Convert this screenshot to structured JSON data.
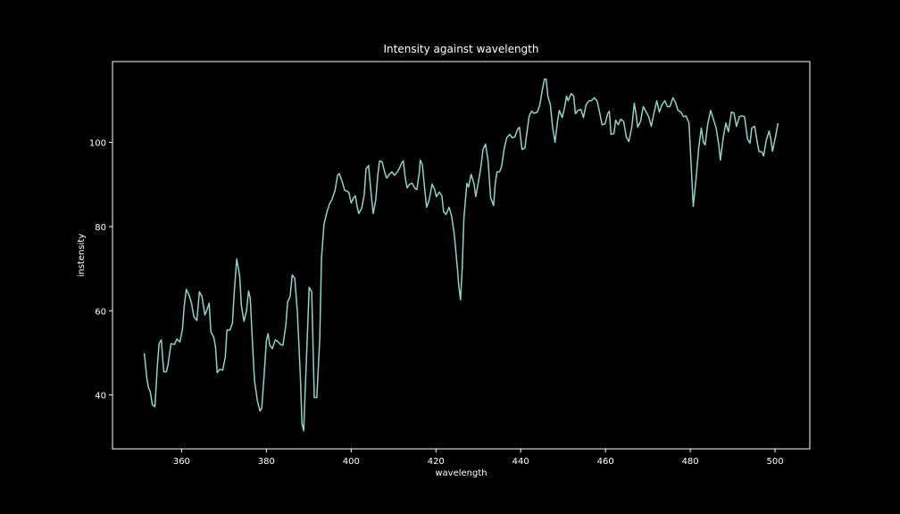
{
  "chart_data": {
    "type": "line",
    "title": "Intensity against wavelength",
    "x_label": "wavelength",
    "y_label": "instensity",
    "xlim": [
      343.7,
      508.2
    ],
    "ylim": [
      27.2,
      119.2
    ],
    "xticks": [
      360,
      380,
      400,
      420,
      440,
      460,
      480,
      500
    ],
    "yticks": [
      40,
      60,
      80,
      100
    ],
    "x": [
      351.2,
      351.8,
      352.2,
      352.6,
      353.1,
      353.7,
      354.3,
      354.7,
      355.2,
      355.8,
      356.4,
      356.8,
      357.5,
      358.3,
      358.9,
      359.6,
      360.2,
      360.6,
      361.1,
      361.7,
      362.3,
      362.9,
      363.6,
      364.2,
      364.8,
      365.5,
      365.9,
      366.5,
      366.9,
      367.6,
      368.0,
      368.4,
      369.0,
      369.7,
      370.3,
      370.7,
      371.4,
      372.0,
      372.4,
      373.0,
      373.7,
      374.1,
      374.7,
      375.3,
      375.8,
      376.2,
      376.8,
      377.2,
      377.9,
      378.5,
      378.9,
      379.5,
      380.0,
      380.4,
      380.8,
      381.4,
      382.1,
      382.7,
      383.3,
      383.9,
      384.6,
      385.0,
      385.6,
      386.1,
      386.7,
      387.3,
      388.0,
      388.4,
      388.8,
      389.4,
      390.1,
      390.7,
      391.3,
      391.9,
      392.6,
      393.0,
      393.6,
      394.3,
      394.9,
      395.5,
      396.2,
      396.8,
      397.2,
      397.8,
      398.5,
      399.1,
      399.5,
      400.0,
      400.6,
      401.0,
      401.4,
      401.8,
      402.5,
      403.1,
      403.5,
      404.1,
      404.8,
      405.2,
      405.8,
      406.3,
      406.7,
      407.3,
      408.0,
      408.4,
      409.0,
      409.6,
      410.2,
      410.9,
      411.5,
      411.9,
      412.3,
      412.8,
      413.2,
      413.8,
      414.4,
      415.1,
      415.5,
      416.1,
      416.3,
      416.8,
      417.4,
      417.8,
      418.4,
      419.1,
      419.7,
      420.1,
      420.8,
      421.4,
      421.8,
      422.4,
      423.1,
      423.7,
      424.3,
      425.0,
      425.4,
      425.8,
      426.2,
      426.6,
      427.3,
      427.7,
      428.3,
      429.0,
      429.4,
      430.0,
      430.6,
      431.1,
      431.7,
      432.3,
      432.9,
      433.6,
      434.0,
      434.4,
      435.0,
      435.5,
      436.1,
      436.7,
      437.4,
      438.0,
      438.6,
      439.3,
      439.7,
      440.3,
      441.0,
      441.4,
      442.0,
      442.6,
      443.2,
      443.9,
      444.5,
      445.1,
      445.6,
      446.0,
      446.4,
      447.0,
      447.5,
      448.1,
      448.7,
      449.1,
      449.8,
      450.4,
      450.8,
      451.2,
      451.9,
      452.5,
      452.9,
      453.5,
      454.2,
      454.8,
      455.4,
      456.1,
      456.7,
      457.3,
      458.0,
      458.6,
      459.2,
      459.9,
      460.5,
      460.9,
      461.3,
      462.0,
      462.4,
      463.0,
      463.6,
      464.3,
      464.9,
      465.5,
      466.2,
      466.8,
      467.2,
      467.6,
      468.3,
      468.9,
      469.5,
      470.2,
      470.8,
      471.4,
      472.1,
      472.7,
      473.3,
      474.0,
      474.6,
      475.2,
      475.9,
      476.5,
      477.1,
      477.8,
      478.4,
      479.0,
      479.7,
      480.1,
      480.7,
      481.4,
      482.0,
      482.6,
      483.1,
      483.5,
      484.1,
      484.8,
      485.4,
      486.1,
      486.7,
      487.1,
      487.8,
      488.4,
      489.0,
      489.7,
      490.3,
      490.9,
      491.6,
      492.2,
      492.8,
      493.5,
      494.1,
      494.5,
      495.2,
      495.8,
      496.2,
      496.9,
      497.3,
      497.9,
      498.6,
      499.0,
      499.4,
      500.1,
      500.7
    ],
    "series": [
      {
        "color": "#8dd3c7",
        "values": [
          49.9,
          44.0,
          41.7,
          40.8,
          37.7,
          37.2,
          47.2,
          52.2,
          53.1,
          45.5,
          45.5,
          47.2,
          52.2,
          52.0,
          53.3,
          52.6,
          55.6,
          60.9,
          65.1,
          63.9,
          62.0,
          58.6,
          57.7,
          64.5,
          63.4,
          59.0,
          60.0,
          61.8,
          55.0,
          53.7,
          51.4,
          45.3,
          46.1,
          45.9,
          48.9,
          55.4,
          55.4,
          57.1,
          64.1,
          72.3,
          68.3,
          61.3,
          57.5,
          59.9,
          64.7,
          63.0,
          50.8,
          43.4,
          38.5,
          36.2,
          36.8,
          45.1,
          52.9,
          54.6,
          51.8,
          51.0,
          53.1,
          52.7,
          52.0,
          51.8,
          56.7,
          62.0,
          63.4,
          68.5,
          67.7,
          59.9,
          44.9,
          33.2,
          31.5,
          47.2,
          65.6,
          64.5,
          39.4,
          39.4,
          53.5,
          72.5,
          80.6,
          83.5,
          85.4,
          86.5,
          88.6,
          92.2,
          92.6,
          90.9,
          88.6,
          88.4,
          88.0,
          85.6,
          86.9,
          87.3,
          84.8,
          83.1,
          84.4,
          87.7,
          93.7,
          94.5,
          86.9,
          83.1,
          86.3,
          92.4,
          95.6,
          95.4,
          92.6,
          91.5,
          92.4,
          93.0,
          92.2,
          93.0,
          94.1,
          95.1,
          95.6,
          91.3,
          89.2,
          90.1,
          90.3,
          89.0,
          88.8,
          93.0,
          95.8,
          94.7,
          88.4,
          84.6,
          86.3,
          90.1,
          88.8,
          87.1,
          88.2,
          87.3,
          83.5,
          82.9,
          84.6,
          82.5,
          78.4,
          70.8,
          65.8,
          62.6,
          70.2,
          82.0,
          90.3,
          89.4,
          92.4,
          90.1,
          87.1,
          90.5,
          94.1,
          98.3,
          99.6,
          95.6,
          86.9,
          85.0,
          90.3,
          93.0,
          93.0,
          94.3,
          98.5,
          101.1,
          101.9,
          101.1,
          101.3,
          103.2,
          103.6,
          98.3,
          98.7,
          101.9,
          106.3,
          107.4,
          106.9,
          107.2,
          108.9,
          112.5,
          115.0,
          115.0,
          111.0,
          108.9,
          103.8,
          100.0,
          105.1,
          107.6,
          105.9,
          108.5,
          111.0,
          109.9,
          111.6,
          111.0,
          106.8,
          107.6,
          107.8,
          105.9,
          108.9,
          109.9,
          109.9,
          110.6,
          109.9,
          107.2,
          104.2,
          104.4,
          106.8,
          107.4,
          101.9,
          102.1,
          105.3,
          104.2,
          105.5,
          104.9,
          101.3,
          100.2,
          103.6,
          109.3,
          106.8,
          103.6,
          105.1,
          108.5,
          107.4,
          106.1,
          103.8,
          106.8,
          109.9,
          107.2,
          108.9,
          109.9,
          108.5,
          108.5,
          110.6,
          109.5,
          107.6,
          107.2,
          106.1,
          106.3,
          104.6,
          96.8,
          84.8,
          91.8,
          98.7,
          103.4,
          100.0,
          99.4,
          104.2,
          107.6,
          105.7,
          103.4,
          99.6,
          95.8,
          101.3,
          104.6,
          102.5,
          107.2,
          107.0,
          103.8,
          106.1,
          106.3,
          106.1,
          100.8,
          99.8,
          103.4,
          103.8,
          100.0,
          97.9,
          97.7,
          96.8,
          100.4,
          102.7,
          100.8,
          97.9,
          101.3,
          104.6
        ]
      }
    ]
  }
}
